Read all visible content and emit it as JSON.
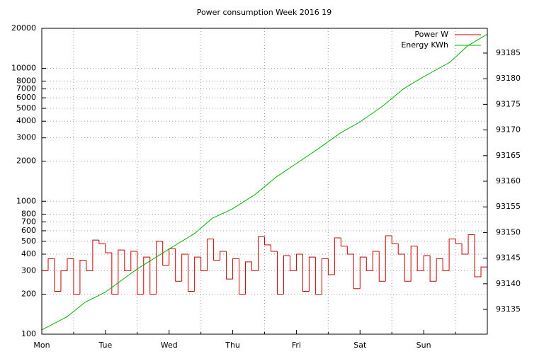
{
  "chart_data": {
    "type": "line",
    "title": "Power consumption Week 2016 19",
    "log_y": true,
    "grid": true,
    "legend": "top-right",
    "xlim": [
      0,
      7
    ],
    "xticks": [
      {
        "value": 0,
        "label": "Mon"
      },
      {
        "value": 1,
        "label": "Tue"
      },
      {
        "value": 2,
        "label": "Wed"
      },
      {
        "value": 3,
        "label": "Thu"
      },
      {
        "value": 4,
        "label": "Fri"
      },
      {
        "value": 5,
        "label": "Sat"
      },
      {
        "value": 6,
        "label": "Sun"
      }
    ],
    "x_minor_ticks": [
      0.5,
      1.5,
      2.5,
      3.5,
      4.5,
      5.5,
      6.5
    ],
    "ylim": [
      100,
      20000
    ],
    "yticks": [
      100,
      200,
      300,
      400,
      500,
      600,
      700,
      800,
      1000,
      2000,
      3000,
      4000,
      5000,
      6000,
      7000,
      8000,
      10000,
      20000
    ],
    "y2lim": [
      93130.17,
      93189.83
    ],
    "y2ticks": [
      93135,
      93140,
      93145,
      93150,
      93155,
      93160,
      93165,
      93170,
      93175,
      93180,
      93185
    ],
    "series": [
      {
        "name": "Power W",
        "color": "#cc0000",
        "style": "step",
        "x": [
          0,
          0.1,
          0.2,
          0.3,
          0.4,
          0.5,
          0.6,
          0.7,
          0.8,
          0.9,
          1,
          1.1,
          1.2,
          1.3,
          1.4,
          1.5,
          1.6,
          1.7,
          1.8,
          1.9,
          2,
          2.1,
          2.2,
          2.3,
          2.4,
          2.5,
          2.6,
          2.7,
          2.8,
          2.9,
          3,
          3.1,
          3.2,
          3.3,
          3.4,
          3.5,
          3.6,
          3.7,
          3.8,
          3.9,
          4,
          4.1,
          4.2,
          4.3,
          4.4,
          4.5,
          4.6,
          4.7,
          4.8,
          4.9,
          5,
          5.1,
          5.2,
          5.3,
          5.4,
          5.5,
          5.6,
          5.7,
          5.8,
          5.9,
          6,
          6.1,
          6.2,
          6.3,
          6.4,
          6.5,
          6.6,
          6.7,
          6.8,
          6.9,
          7
        ],
        "values": [
          300,
          370,
          210,
          300,
          370,
          200,
          360,
          300,
          510,
          480,
          410,
          200,
          430,
          300,
          420,
          200,
          380,
          200,
          500,
          330,
          440,
          250,
          400,
          210,
          380,
          300,
          520,
          360,
          420,
          260,
          370,
          200,
          350,
          300,
          540,
          470,
          420,
          200,
          390,
          300,
          400,
          210,
          380,
          200,
          370,
          280,
          530,
          460,
          400,
          220,
          380,
          300,
          420,
          250,
          550,
          480,
          400,
          250,
          460,
          300,
          390,
          250,
          370,
          300,
          520,
          480,
          400,
          560,
          270,
          320,
          400
        ]
      },
      {
        "name": "Energy KWh",
        "color": "#00b000",
        "axis": "y2",
        "x": [
          0,
          0.4,
          0.68,
          0.99,
          1.5,
          1.99,
          2.4,
          2.68,
          2.98,
          3.35,
          3.68,
          3.98,
          4.35,
          4.69,
          4.99,
          5.35,
          5.69,
          6.0,
          6.41,
          6.69,
          7.0
        ],
        "values": [
          93131.0,
          93133.6,
          93136.4,
          93138.3,
          93142.9,
          93146.7,
          93149.8,
          93152.8,
          93154.5,
          93157.4,
          93160.8,
          93163.3,
          93166.4,
          93169.4,
          93171.5,
          93174.6,
          93178.1,
          93180.4,
          93183.2,
          93186.4,
          93188.7
        ]
      }
    ]
  }
}
